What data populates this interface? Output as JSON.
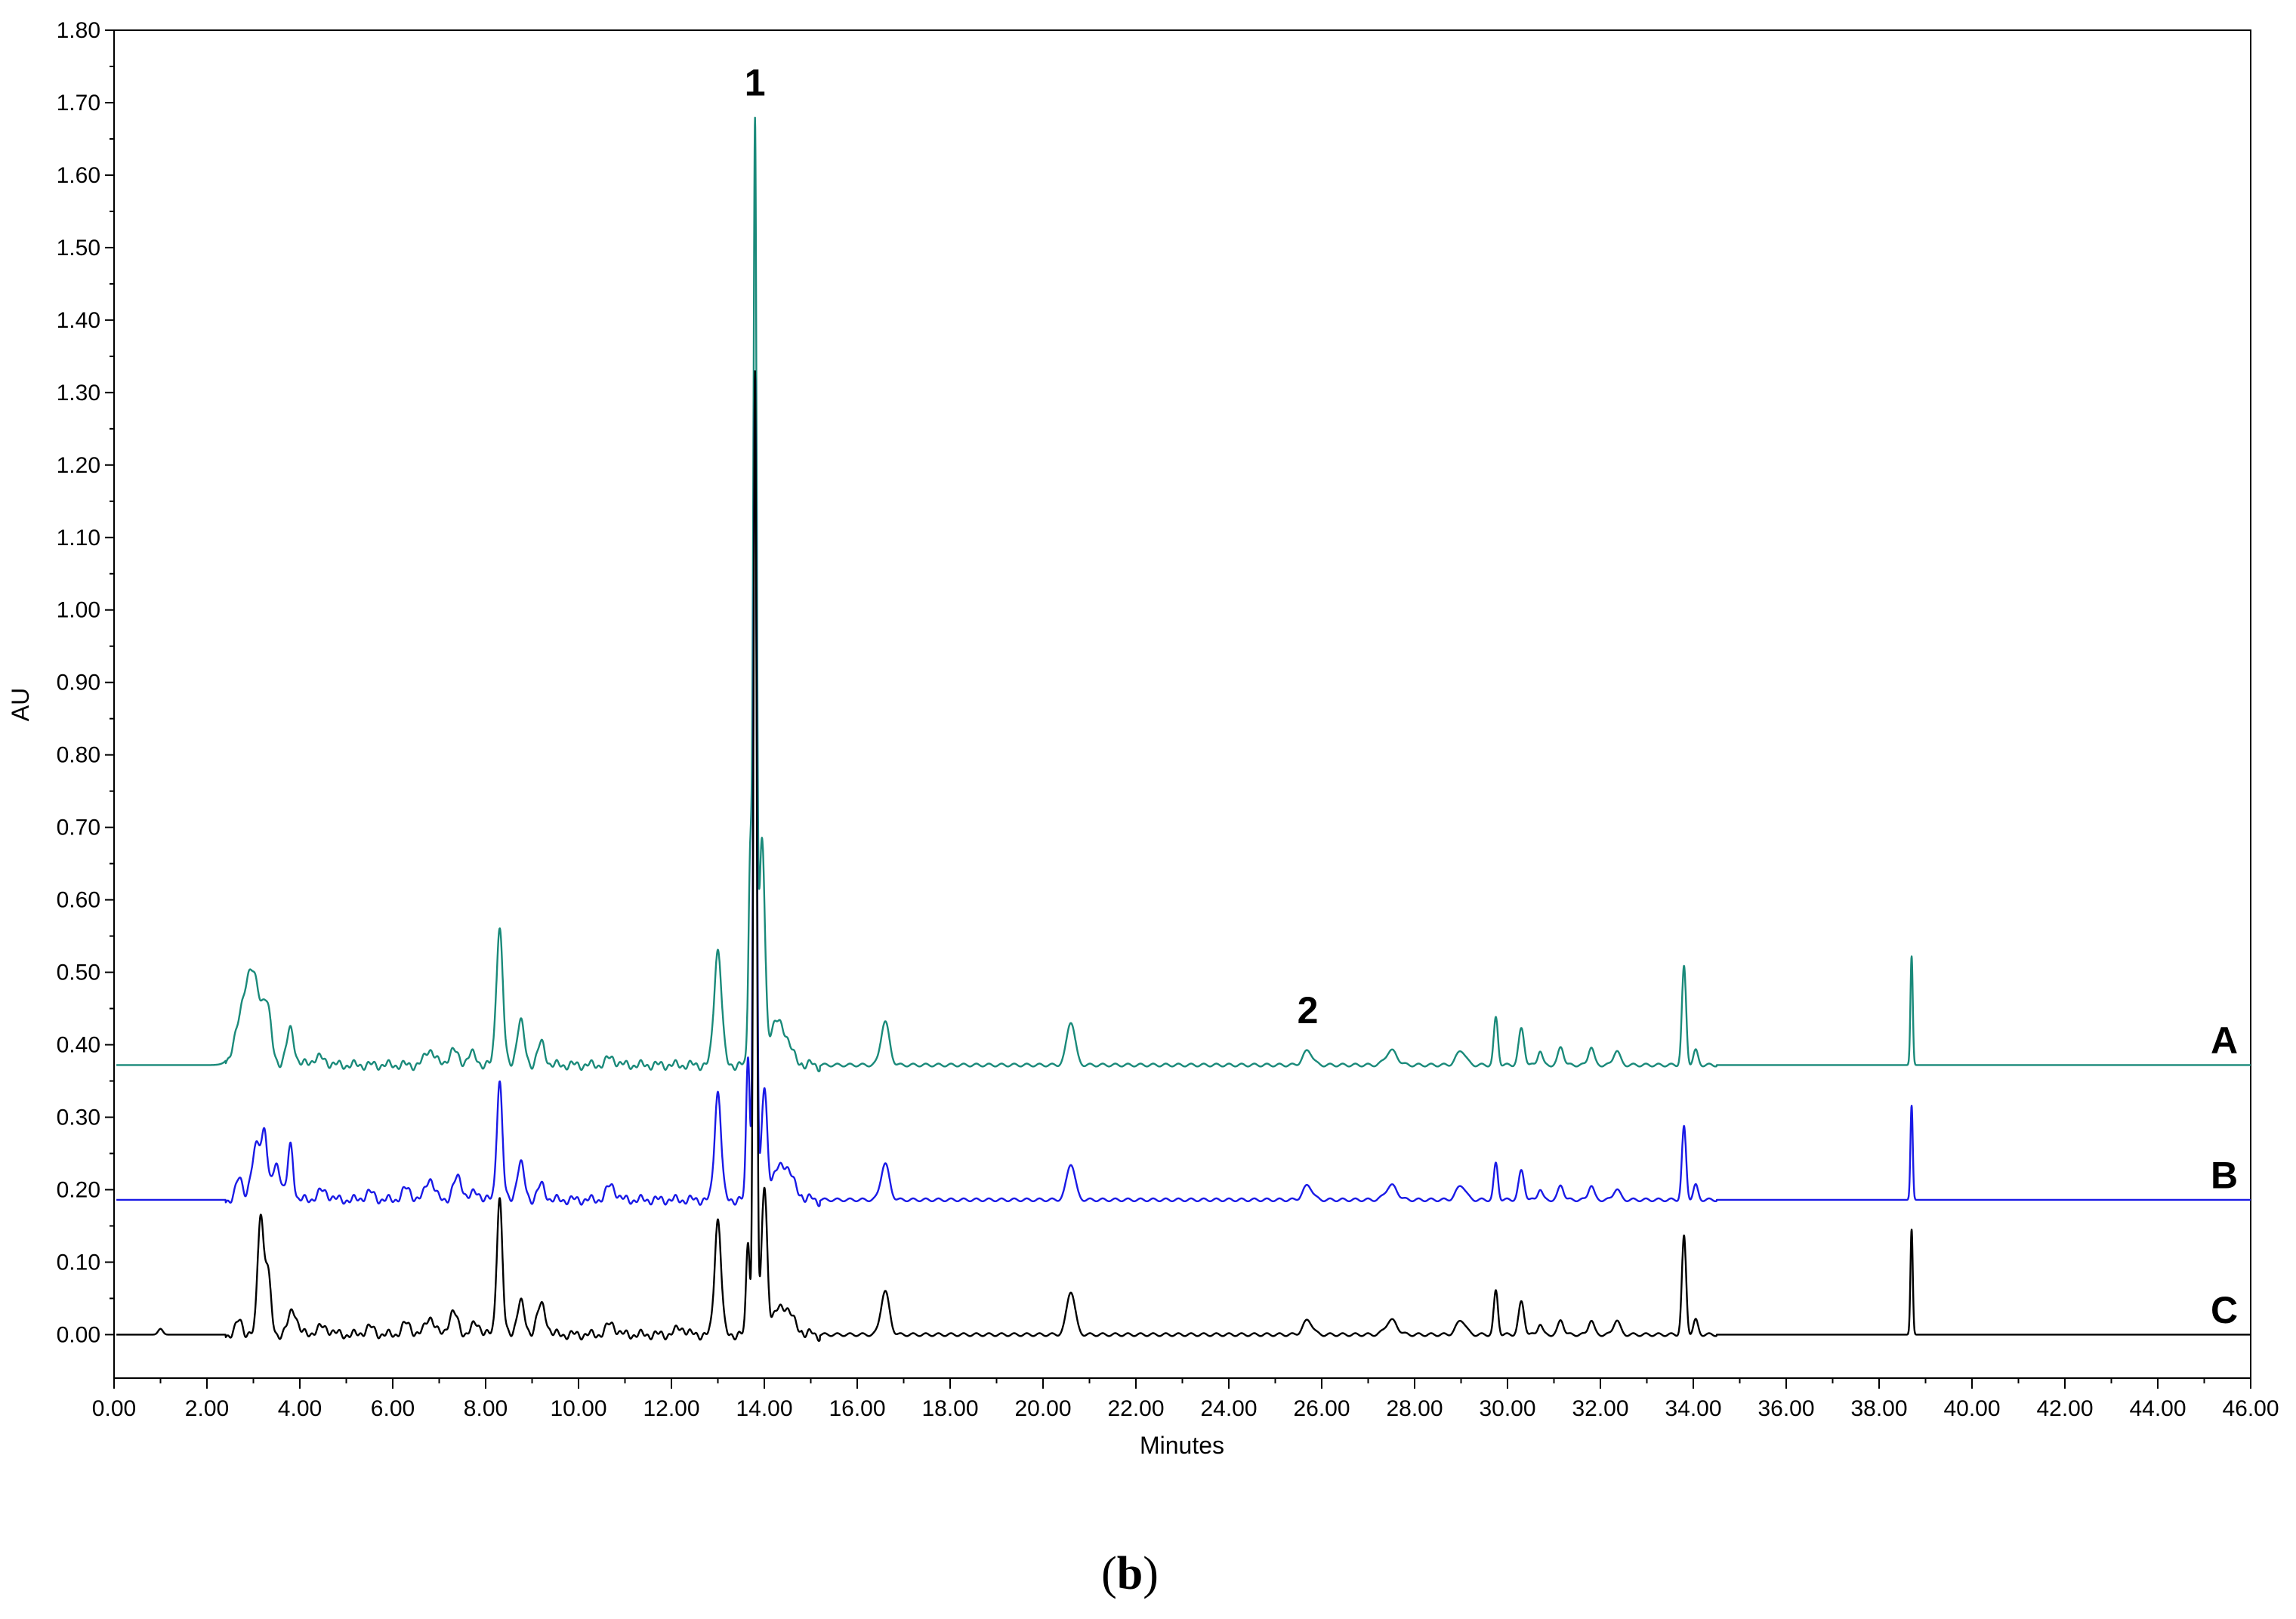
{
  "caption": {
    "open": "(",
    "letter": "b",
    "close": ")"
  },
  "chart_data": {
    "type": "line",
    "xlabel": "Minutes",
    "ylabel": "AU",
    "xlim": [
      0,
      46
    ],
    "ylim": [
      -0.06,
      1.8
    ],
    "x_ticks": [
      "0.00",
      "2.00",
      "4.00",
      "6.00",
      "8.00",
      "10.00",
      "12.00",
      "14.00",
      "16.00",
      "18.00",
      "20.00",
      "22.00",
      "24.00",
      "26.00",
      "28.00",
      "30.00",
      "32.00",
      "34.00",
      "36.00",
      "38.00",
      "40.00",
      "42.00",
      "44.00",
      "46.00"
    ],
    "y_ticks": [
      "0.00",
      "0.10",
      "0.20",
      "0.30",
      "0.40",
      "0.50",
      "0.60",
      "0.70",
      "0.80",
      "0.90",
      "1.00",
      "1.10",
      "1.20",
      "1.30",
      "1.40",
      "1.50",
      "1.60",
      "1.70",
      "1.80"
    ],
    "grid": false,
    "series": [
      {
        "name": "A",
        "color": "#1a8a7a",
        "baseline": 0.372,
        "peaks": [
          [
            2.95,
            0.13,
            0.22
          ],
          [
            3.3,
            0.05,
            0.08
          ],
          [
            3.8,
            0.05,
            0.08
          ],
          [
            4.4,
            0.01,
            0.15
          ],
          [
            6.8,
            0.022,
            0.1
          ],
          [
            7.3,
            0.02,
            0.1
          ],
          [
            7.7,
            0.015,
            0.1
          ],
          [
            8.3,
            0.19,
            0.07
          ],
          [
            8.75,
            0.06,
            0.08
          ],
          [
            9.2,
            0.03,
            0.08
          ],
          [
            10.7,
            0.01,
            0.1
          ],
          [
            13.0,
            0.16,
            0.08
          ],
          [
            13.7,
            0.3,
            0.04
          ],
          [
            13.8,
            1.28,
            0.035
          ],
          [
            13.95,
            0.3,
            0.06
          ],
          [
            14.3,
            0.06,
            0.2
          ],
          [
            16.6,
            0.06,
            0.09
          ],
          [
            20.6,
            0.06,
            0.09
          ],
          [
            25.7,
            0.02,
            0.1
          ],
          [
            27.5,
            0.02,
            0.12
          ],
          [
            29.0,
            0.02,
            0.1
          ],
          [
            29.75,
            0.065,
            0.045
          ],
          [
            30.3,
            0.05,
            0.06
          ],
          [
            30.7,
            0.02,
            0.05
          ],
          [
            31.15,
            0.025,
            0.06
          ],
          [
            31.8,
            0.025,
            0.06
          ],
          [
            32.35,
            0.02,
            0.07
          ],
          [
            33.8,
            0.135,
            0.045
          ],
          [
            34.05,
            0.02,
            0.05
          ],
          [
            38.7,
            0.15,
            0.025
          ]
        ]
      },
      {
        "name": "B",
        "color": "#1a1ae6",
        "baseline": 0.186,
        "peaks": [
          [
            2.7,
            0.03,
            0.07
          ],
          [
            3.1,
            0.08,
            0.12
          ],
          [
            3.25,
            0.06,
            0.05
          ],
          [
            3.5,
            0.05,
            0.09
          ],
          [
            3.8,
            0.075,
            0.06
          ],
          [
            4.5,
            0.012,
            0.12
          ],
          [
            5.5,
            0.01,
            0.1
          ],
          [
            6.3,
            0.015,
            0.1
          ],
          [
            6.8,
            0.03,
            0.09
          ],
          [
            7.4,
            0.03,
            0.1
          ],
          [
            7.8,
            0.01,
            0.1
          ],
          [
            8.3,
            0.165,
            0.06
          ],
          [
            8.75,
            0.05,
            0.08
          ],
          [
            9.2,
            0.02,
            0.08
          ],
          [
            10.7,
            0.02,
            0.1
          ],
          [
            13.0,
            0.15,
            0.07
          ],
          [
            13.65,
            0.2,
            0.04
          ],
          [
            13.8,
            1.14,
            0.035
          ],
          [
            14.0,
            0.15,
            0.06
          ],
          [
            14.4,
            0.05,
            0.2
          ],
          [
            16.6,
            0.05,
            0.09
          ],
          [
            20.6,
            0.05,
            0.09
          ],
          [
            25.7,
            0.02,
            0.1
          ],
          [
            27.5,
            0.02,
            0.12
          ],
          [
            29.0,
            0.02,
            0.1
          ],
          [
            29.75,
            0.05,
            0.045
          ],
          [
            30.3,
            0.04,
            0.06
          ],
          [
            30.7,
            0.015,
            0.05
          ],
          [
            31.15,
            0.02,
            0.06
          ],
          [
            31.8,
            0.02,
            0.06
          ],
          [
            32.35,
            0.015,
            0.07
          ],
          [
            33.8,
            0.1,
            0.045
          ],
          [
            34.05,
            0.02,
            0.05
          ],
          [
            38.7,
            0.13,
            0.025
          ]
        ]
      },
      {
        "name": "C",
        "color": "#000000",
        "baseline": 0.0,
        "peaks": [
          [
            1.0,
            0.008,
            0.05
          ],
          [
            2.7,
            0.02,
            0.07
          ],
          [
            3.15,
            0.16,
            0.06
          ],
          [
            3.3,
            0.09,
            0.07
          ],
          [
            3.85,
            0.035,
            0.09
          ],
          [
            4.5,
            0.01,
            0.15
          ],
          [
            5.5,
            0.01,
            0.1
          ],
          [
            6.3,
            0.015,
            0.1
          ],
          [
            6.8,
            0.025,
            0.09
          ],
          [
            7.3,
            0.03,
            0.1
          ],
          [
            7.8,
            0.015,
            0.1
          ],
          [
            8.3,
            0.19,
            0.06
          ],
          [
            8.75,
            0.045,
            0.08
          ],
          [
            9.2,
            0.04,
            0.1
          ],
          [
            10.7,
            0.015,
            0.1
          ],
          [
            12.2,
            0.01,
            0.1
          ],
          [
            13.0,
            0.16,
            0.07
          ],
          [
            13.65,
            0.13,
            0.04
          ],
          [
            13.8,
            1.33,
            0.035
          ],
          [
            14.0,
            0.2,
            0.06
          ],
          [
            14.4,
            0.04,
            0.2
          ],
          [
            16.6,
            0.06,
            0.09
          ],
          [
            20.6,
            0.06,
            0.09
          ],
          [
            25.7,
            0.02,
            0.1
          ],
          [
            27.5,
            0.02,
            0.12
          ],
          [
            29.0,
            0.02,
            0.1
          ],
          [
            29.75,
            0.06,
            0.045
          ],
          [
            30.3,
            0.045,
            0.06
          ],
          [
            30.7,
            0.015,
            0.05
          ],
          [
            31.15,
            0.02,
            0.06
          ],
          [
            31.8,
            0.02,
            0.06
          ],
          [
            32.35,
            0.02,
            0.07
          ],
          [
            33.8,
            0.135,
            0.045
          ],
          [
            34.05,
            0.02,
            0.05
          ],
          [
            38.7,
            0.145,
            0.025
          ]
        ]
      }
    ],
    "annotations": [
      {
        "text": "1",
        "x": 13.8,
        "y": 1.71
      },
      {
        "text": "2",
        "x": 25.7,
        "y": 0.43
      }
    ]
  }
}
